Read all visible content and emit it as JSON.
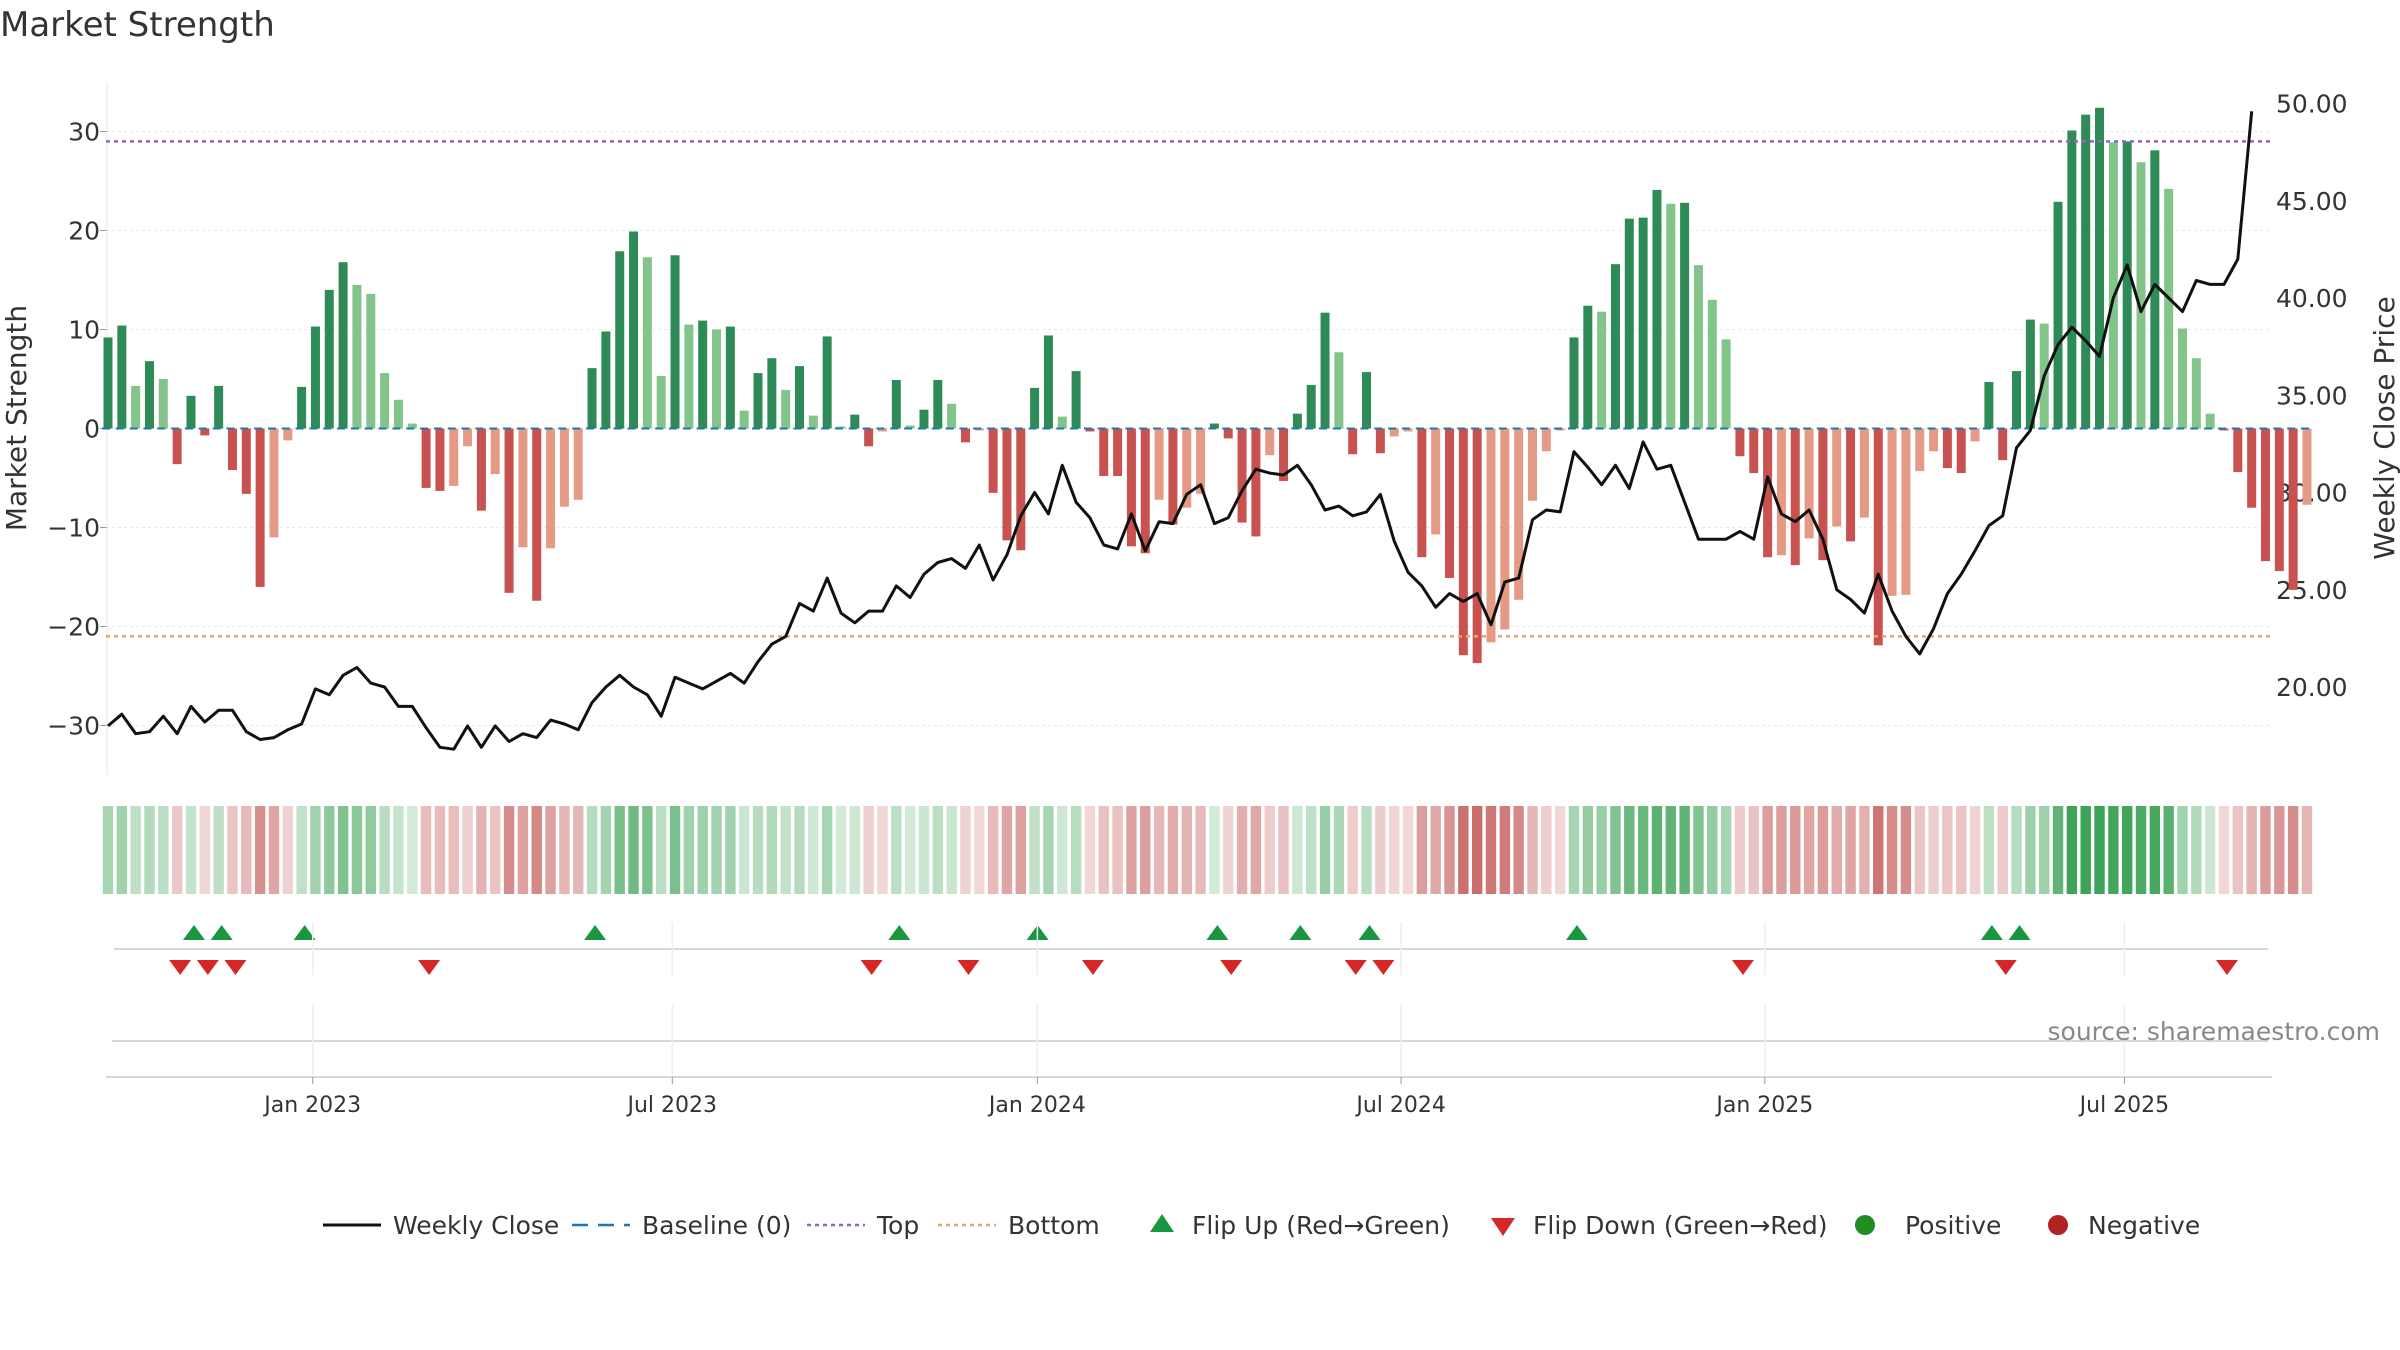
{
  "chart_data": {
    "type": "bar",
    "title": "Market Strength",
    "ylabel_left": "Market Strength",
    "ylabel_right": "Weekly Close Price",
    "left_ylim": [
      -35,
      36
    ],
    "right_ylim": [
      15.5,
      51.5
    ],
    "left_ticks": [
      {
        "v": 30,
        "label": "30"
      },
      {
        "v": 20,
        "label": "20"
      },
      {
        "v": 10,
        "label": "10"
      },
      {
        "v": 0,
        "label": "0"
      },
      {
        "v": -10,
        "label": "−10"
      },
      {
        "v": -20,
        "label": "−20"
      },
      {
        "v": -30,
        "label": "−30"
      }
    ],
    "right_ticks": [
      {
        "v": 50,
        "label": "50.00"
      },
      {
        "v": 45,
        "label": "45.00"
      },
      {
        "v": 40,
        "label": "40.00"
      },
      {
        "v": 35,
        "label": "35.00"
      },
      {
        "v": 30,
        "label": "30.00"
      },
      {
        "v": 25,
        "label": "25.00"
      },
      {
        "v": 20,
        "label": "20.00"
      }
    ],
    "x_ticks": [
      {
        "week": 14.8,
        "label": "Jan 2023"
      },
      {
        "week": 40.8,
        "label": "Jul 2023"
      },
      {
        "week": 67.2,
        "label": "Jan 2024"
      },
      {
        "week": 93.5,
        "label": "Jul 2024"
      },
      {
        "week": 119.8,
        "label": "Jan 2025"
      },
      {
        "week": 145.8,
        "label": "Jul 2025"
      }
    ],
    "top_line": 29,
    "bottom_line": -21,
    "strength": [
      9.2,
      10.4,
      4.3,
      6.8,
      5.0,
      -3.6,
      3.3,
      -0.7,
      4.3,
      -4.2,
      -6.6,
      -16.0,
      -11.0,
      -1.2,
      4.2,
      10.3,
      14.0,
      16.8,
      14.5,
      13.6,
      5.6,
      2.9,
      0.5,
      -6.0,
      -6.3,
      -5.8,
      -1.8,
      -8.3,
      -4.6,
      -16.6,
      -12.0,
      -17.4,
      -12.1,
      -7.9,
      -7.2,
      6.1,
      9.8,
      17.9,
      19.9,
      17.3,
      5.3,
      17.5,
      10.5,
      10.9,
      10.0,
      10.3,
      1.8,
      5.6,
      7.1,
      3.9,
      6.3,
      1.3,
      9.3,
      0.2,
      1.4,
      -1.8,
      -0.3,
      4.9,
      0.3,
      1.9,
      4.9,
      2.5,
      -1.4,
      -0.2,
      -6.5,
      -11.3,
      -12.3,
      4.1,
      9.4,
      1.2,
      5.8,
      -0.3,
      -4.8,
      -4.8,
      -11.9,
      -12.6,
      -7.2,
      -9.7,
      -8.0,
      -6.6,
      0.5,
      -1.0,
      -9.5,
      -10.9,
      -2.7,
      -5.3,
      1.5,
      4.4,
      11.7,
      7.7,
      -2.6,
      5.7,
      -2.5,
      -0.8,
      -0.3,
      -13.0,
      -10.7,
      -15.1,
      -22.9,
      -23.7,
      -21.6,
      -20.3,
      -17.3,
      -7.3,
      -2.3,
      -0.2,
      9.2,
      12.4,
      11.8,
      16.6,
      21.2,
      21.3,
      24.1,
      22.7,
      22.8,
      16.5,
      13.0,
      9.0,
      -2.8,
      -4.5,
      -13.0,
      -12.8,
      -13.8,
      -11.1,
      -13.3,
      -9.9,
      -11.4,
      -9.0,
      -21.9,
      -16.9,
      -16.8,
      -4.3,
      -2.3,
      -4.0,
      -4.5,
      -1.3,
      4.7,
      -3.2,
      5.8,
      11.0,
      10.6,
      22.9,
      30.1,
      31.7,
      32.4,
      28.9,
      29.0,
      26.9,
      28.1,
      24.2,
      10.1,
      7.1,
      1.5,
      -0.2,
      -4.4,
      -8.0,
      -13.4,
      -14.4,
      -16.3,
      -7.7
    ],
    "weekly_close": [
      18.0,
      18.6,
      17.6,
      17.7,
      18.5,
      17.6,
      19.0,
      18.2,
      18.8,
      18.8,
      17.7,
      17.3,
      17.4,
      17.8,
      18.1,
      19.9,
      19.6,
      20.6,
      21.0,
      20.2,
      20.0,
      19.0,
      19.0,
      17.9,
      16.9,
      16.8,
      18.0,
      16.9,
      18.0,
      17.2,
      17.6,
      17.4,
      18.3,
      18.1,
      17.8,
      19.2,
      20.0,
      20.6,
      20.0,
      19.6,
      18.5,
      20.5,
      20.2,
      19.9,
      20.3,
      20.7,
      20.2,
      21.3,
      22.2,
      22.6,
      24.3,
      23.9,
      25.6,
      23.8,
      23.3,
      23.9,
      23.9,
      25.2,
      24.6,
      25.8,
      26.4,
      26.6,
      26.1,
      27.3,
      25.5,
      26.8,
      28.8,
      30.0,
      28.9,
      31.4,
      29.5,
      28.7,
      27.3,
      27.1,
      28.9,
      27.0,
      28.5,
      28.4,
      29.9,
      30.4,
      28.4,
      28.7,
      30.1,
      31.2,
      31.0,
      30.9,
      31.4,
      30.4,
      29.1,
      29.3,
      28.8,
      29.0,
      29.9,
      27.5,
      25.9,
      25.2,
      24.1,
      24.8,
      24.4,
      24.8,
      23.2,
      25.4,
      25.6,
      28.6,
      29.1,
      29.0,
      32.1,
      31.3,
      30.4,
      31.4,
      30.2,
      32.6,
      31.2,
      31.4,
      29.5,
      27.6,
      27.6,
      27.6,
      28.0,
      27.6,
      30.8,
      28.9,
      28.5,
      29.1,
      27.6,
      25.0,
      24.5,
      23.8,
      25.8,
      23.9,
      22.6,
      21.7,
      23.0,
      24.8,
      25.8,
      27.0,
      28.3,
      28.8,
      32.3,
      33.2,
      36.0,
      37.6,
      38.5,
      37.8,
      37.0,
      40.0,
      41.7,
      39.3,
      40.7,
      40.0,
      39.3,
      40.9,
      40.7,
      40.7,
      42.0,
      49.6
    ]
  },
  "legend": [
    {
      "key": "close",
      "label": "Weekly Close"
    },
    {
      "key": "baseline",
      "label": "Baseline (0)"
    },
    {
      "key": "top",
      "label": "Top"
    },
    {
      "key": "bottom",
      "label": "Bottom"
    },
    {
      "key": "flipup",
      "label": "Flip Up (Red→Green)"
    },
    {
      "key": "flipdown",
      "label": "Flip Down (Green→Red)"
    },
    {
      "key": "positive",
      "label": "Positive"
    },
    {
      "key": "negative",
      "label": "Negative"
    }
  ],
  "colors": {
    "pos_dark": "#2e8b57",
    "pos_light": "#82c48a",
    "neg_dark": "#c85250",
    "neg_light": "#e49a84",
    "close": "#111111",
    "baseline": "#1f77b4",
    "top": "#9467bd",
    "bottom": "#e0a870",
    "flip_up": "#1a9641",
    "flip_down": "#d62728",
    "positive_dot": "#228b22",
    "negative_dot": "#b22222"
  },
  "source": "source: sharemaestro.com"
}
